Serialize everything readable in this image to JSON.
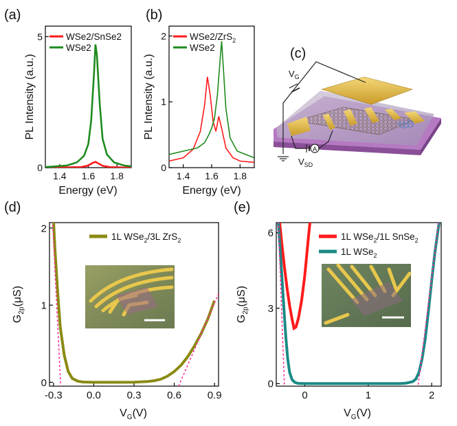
{
  "schematic": {
    "panel_label": "(c)",
    "vg_main": "V",
    "vg_sub": "G",
    "vsd_main": "V",
    "vsd_sub": "SD",
    "ammeter": "A"
  },
  "chart_data": [
    {
      "panel_label": "(a)",
      "type": "line",
      "xlabel": "Energy (eV)",
      "ylabel": "PL Intensity (a.u.)",
      "xlim": [
        1.3,
        1.9
      ],
      "ylim": [
        0,
        5.4
      ],
      "xticks": [
        1.4,
        1.6,
        1.8
      ],
      "xtick_labels": [
        "1.4",
        "1.6",
        "1.8"
      ],
      "yticks": [
        0,
        5
      ],
      "ytick_labels": [
        "0",
        "5"
      ],
      "legend": [
        {
          "text": "WSe2/SnSe2",
          "sub": ""
        },
        {
          "text": "WSe2",
          "sub": ""
        }
      ],
      "colors": [
        "#ff1a1a",
        "#1d8a1d"
      ],
      "series": [
        {
          "name": "WSe2/SnSe2",
          "x": [
            1.3,
            1.55,
            1.6,
            1.63,
            1.65,
            1.67,
            1.7,
            1.75,
            1.9
          ],
          "y": [
            0,
            0.02,
            0.08,
            0.18,
            0.22,
            0.16,
            0.07,
            0.02,
            0
          ]
        },
        {
          "name": "WSe2",
          "x": [
            1.3,
            1.45,
            1.52,
            1.57,
            1.6,
            1.62,
            1.64,
            1.65,
            1.66,
            1.68,
            1.7,
            1.73,
            1.78,
            1.85,
            1.9
          ],
          "y": [
            0.02,
            0.08,
            0.2,
            0.45,
            0.9,
            1.8,
            3.6,
            4.7,
            4.3,
            2.4,
            1.1,
            0.5,
            0.2,
            0.08,
            0.05
          ]
        }
      ]
    },
    {
      "panel_label": "(b)",
      "type": "line",
      "xlabel": "Energy (eV)",
      "ylabel": "PL Intensity (a.u.)",
      "xlim": [
        1.3,
        1.9
      ],
      "ylim": [
        0,
        2.15
      ],
      "xticks": [
        1.4,
        1.6,
        1.8
      ],
      "xtick_labels": [
        "1.4",
        "1.6",
        "1.8"
      ],
      "yticks": [
        0,
        1,
        2
      ],
      "ytick_labels": [
        "0",
        "1",
        "2"
      ],
      "legend": [
        {
          "text": "WSe2/ZrS",
          "sub": "2",
          "text2": "",
          "sub2": ""
        },
        {
          "text": "WSe2",
          "sub": ""
        }
      ],
      "colors": [
        "#ff1a1a",
        "#1d8a1d"
      ],
      "series": [
        {
          "name": "WSe2/ZrS2",
          "x": [
            1.3,
            1.4,
            1.47,
            1.52,
            1.55,
            1.57,
            1.59,
            1.61,
            1.63,
            1.65,
            1.67,
            1.7,
            1.75,
            1.8,
            1.9
          ],
          "y": [
            0.1,
            0.15,
            0.28,
            0.55,
            0.95,
            1.38,
            1.1,
            0.7,
            0.55,
            0.78,
            0.6,
            0.3,
            0.15,
            0.1,
            0.08
          ]
        },
        {
          "name": "WSe2",
          "x": [
            1.3,
            1.4,
            1.5,
            1.55,
            1.58,
            1.6,
            1.62,
            1.64,
            1.66,
            1.67,
            1.68,
            1.7,
            1.73,
            1.78,
            1.9
          ],
          "y": [
            0.2,
            0.25,
            0.3,
            0.38,
            0.5,
            0.6,
            0.75,
            1.1,
            1.65,
            1.92,
            1.6,
            0.9,
            0.45,
            0.25,
            0.15
          ]
        }
      ]
    },
    {
      "panel_label": "(d)",
      "type": "line",
      "xlabel_main": "V",
      "xlabel_sub": "G",
      "xlabel_unit": "(V)",
      "ylabel_main": "G",
      "ylabel_sub": "2p",
      "ylabel_unit": "(μS)",
      "xlim": [
        -0.33,
        0.93
      ],
      "ylim": [
        -0.05,
        2.07
      ],
      "xticks": [
        -0.3,
        0.0,
        0.3,
        0.6,
        0.9
      ],
      "xtick_labels": [
        "-0.3",
        "0.0",
        "0.3",
        "0.6",
        "0.9"
      ],
      "yticks": [
        0,
        1,
        2
      ],
      "ytick_labels": [
        "0",
        "1",
        "2"
      ],
      "legend": [
        {
          "text": "1L WSe",
          "sub": "2",
          "text2": "/3L ZrS",
          "sub2": "2"
        }
      ],
      "colors": [
        "#8a8a12",
        "#ff2e9a"
      ],
      "series": [
        {
          "name": "1L WSe2/3L ZrS2",
          "x": [
            -0.3,
            -0.29,
            -0.27,
            -0.25,
            -0.22,
            -0.19,
            -0.16,
            -0.12,
            -0.08,
            0.0,
            0.1,
            0.2,
            0.3,
            0.4,
            0.45,
            0.5,
            0.55,
            0.6,
            0.65,
            0.7,
            0.75,
            0.8,
            0.85,
            0.9
          ],
          "y": [
            2.1,
            1.75,
            1.2,
            0.72,
            0.35,
            0.14,
            0.05,
            0.015,
            0.003,
            0.0,
            0.0,
            0.0,
            0.002,
            0.01,
            0.02,
            0.04,
            0.08,
            0.14,
            0.22,
            0.33,
            0.47,
            0.63,
            0.82,
            1.06
          ]
        }
      ],
      "fit_lines": [
        {
          "x": [
            -0.31,
            -0.245
          ],
          "y": [
            2.2,
            -0.1
          ]
        },
        {
          "x": [
            0.62,
            0.93
          ],
          "y": [
            -0.1,
            1.15
          ]
        }
      ]
    },
    {
      "panel_label": "(e)",
      "type": "line",
      "xlabel_main": "V",
      "xlabel_sub": "G",
      "xlabel_unit": "(V)",
      "ylabel_main": "G",
      "ylabel_sub": "2p",
      "ylabel_unit": "(μS)",
      "xlim": [
        -0.45,
        2.15
      ],
      "ylim": [
        -0.1,
        6.4
      ],
      "xticks": [
        0,
        1,
        2
      ],
      "xtick_labels": [
        "0",
        "1",
        "2"
      ],
      "yticks": [
        0,
        3,
        6
      ],
      "ytick_labels": [
        "0",
        "3",
        "6"
      ],
      "legend": [
        {
          "text": "1L WSe",
          "sub": "2",
          "text2": "/1L SnSe",
          "sub2": "2"
        },
        {
          "text": "1L WSe",
          "sub": "2"
        }
      ],
      "colors": [
        "#ff1a1a",
        "#1b8a86",
        "#ff2e9a"
      ],
      "series": [
        {
          "name": "1L WSe2/1L SnSe2",
          "x": [
            -0.4,
            -0.36,
            -0.32,
            -0.28,
            -0.24,
            -0.2,
            -0.17,
            -0.14,
            -0.1,
            -0.05,
            0.0,
            0.03,
            0.06,
            0.09
          ],
          "y": [
            6.5,
            5.5,
            4.6,
            3.8,
            3.1,
            2.55,
            2.2,
            2.25,
            2.6,
            3.3,
            4.3,
            5.1,
            5.9,
            6.6
          ]
        },
        {
          "name": "1L WSe2",
          "x": [
            -0.42,
            -0.39,
            -0.36,
            -0.33,
            -0.3,
            -0.27,
            -0.24,
            -0.2,
            -0.15,
            -0.1,
            0.0,
            0.5,
            1.0,
            1.5,
            1.6,
            1.7,
            1.75,
            1.8,
            1.85,
            1.9,
            1.95,
            2.0,
            2.05,
            2.1,
            2.13
          ],
          "y": [
            6.5,
            5.4,
            4.2,
            3.0,
            1.9,
            1.0,
            0.45,
            0.15,
            0.04,
            0.01,
            0.0,
            0.0,
            0.0,
            0.0,
            0.02,
            0.08,
            0.18,
            0.45,
            1.0,
            1.8,
            2.9,
            4.1,
            5.2,
            6.1,
            6.6
          ]
        }
      ],
      "fit_lines": [
        {
          "x": [
            -0.42,
            -0.32
          ],
          "y": [
            6.6,
            -0.2
          ]
        },
        {
          "x": [
            1.78,
            2.12
          ],
          "y": [
            -0.2,
            6.6
          ]
        }
      ]
    }
  ]
}
